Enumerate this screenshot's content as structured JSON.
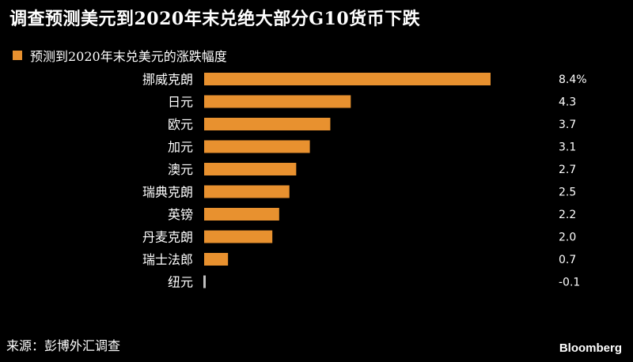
{
  "chart_data": {
    "type": "bar",
    "orientation": "horizontal",
    "title": "调查预测美元到2020年末兑绝大部分G10货币下跌",
    "legend": [
      "预测到2020年末兑美元的涨跌幅度"
    ],
    "value_labels": [
      "8.4%",
      "4.3",
      "3.7",
      "3.1",
      "2.7",
      "2.5",
      "2.2",
      "2.0",
      "0.7",
      "-0.1"
    ],
    "categories": [
      "挪威克朗",
      "日元",
      "欧元",
      "加元",
      "澳元",
      "瑞典克朗",
      "英镑",
      "丹麦克朗",
      "瑞士法郎",
      "纽元"
    ],
    "values": [
      8.4,
      4.3,
      3.7,
      3.1,
      2.7,
      2.5,
      2.2,
      2.0,
      0.7,
      -0.1
    ],
    "xlim": [
      0,
      8.4
    ],
    "grid": false,
    "legend_position": "top-left"
  },
  "colors": {
    "background": "#000000",
    "bar": "#e8912f",
    "negative_bar": "#bfbfbf",
    "text": "#ffffff"
  },
  "source": "来源：彭博外汇调查",
  "brand": "Bloomberg"
}
